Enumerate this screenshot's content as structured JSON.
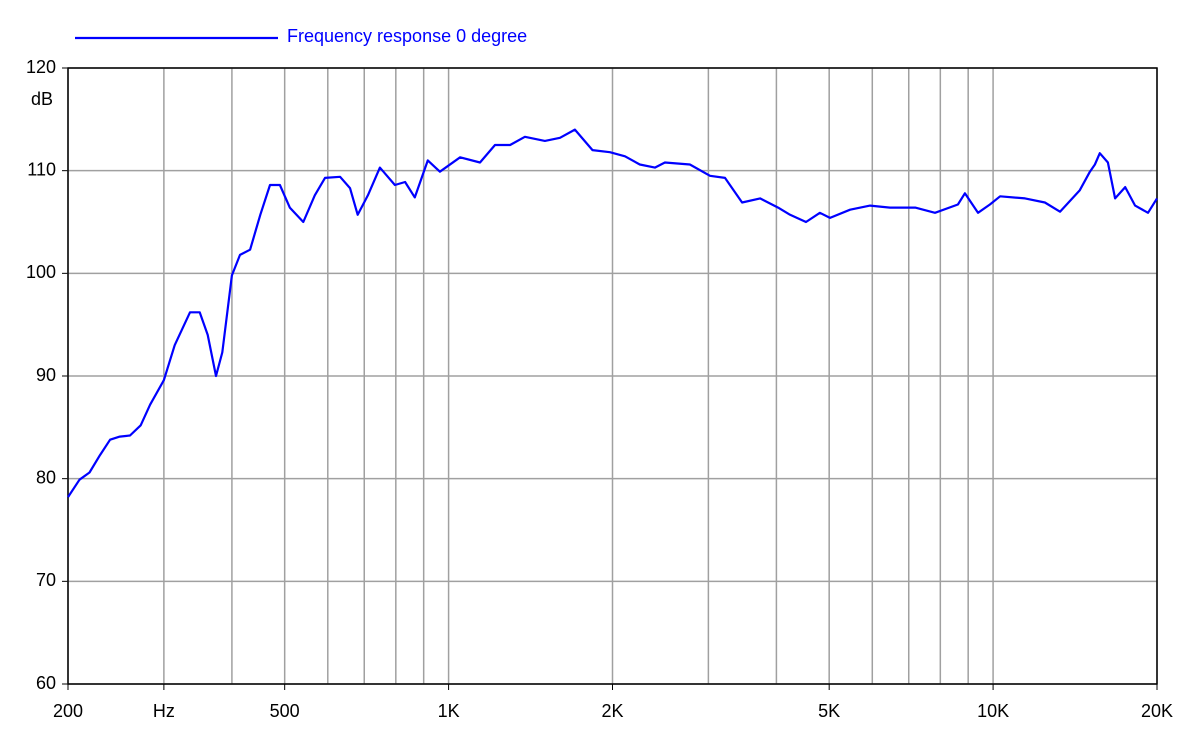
{
  "chart_data": {
    "type": "line",
    "title": "Frequency response 0 degree",
    "y_label": "dB",
    "log_x": true,
    "grid": true,
    "xlim": [
      200,
      20000
    ],
    "ylim": [
      60,
      120
    ],
    "xticks": [
      200,
      {
        "value": 300,
        "label": "Hz"
      },
      500,
      {
        "value": 1000,
        "label": "1K"
      },
      {
        "value": 2000,
        "label": "2K"
      },
      {
        "value": 5000,
        "label": "5K"
      },
      {
        "value": 10000,
        "label": "10K"
      },
      {
        "value": 20000,
        "label": "20K"
      }
    ],
    "xminor": [
      400,
      600,
      700,
      800,
      900,
      3000,
      4000,
      6000,
      7000,
      8000,
      9000
    ],
    "yticks": [
      60,
      70,
      80,
      90,
      100,
      110,
      120
    ],
    "x": [
      200,
      210,
      219,
      229,
      239,
      249,
      260,
      272,
      283,
      300,
      314,
      335,
      349,
      361,
      374,
      384,
      400,
      414,
      432,
      451,
      470,
      490,
      511,
      541,
      568,
      593,
      632,
      659,
      681,
      711,
      748,
      797,
      832,
      867,
      916,
      964,
      1050,
      1142,
      1217,
      1297,
      1381,
      1503,
      1602,
      1706,
      1838,
      1978,
      2109,
      2245,
      2393,
      2496,
      2774,
      3020,
      3219,
      3460,
      3734,
      4028,
      4238,
      4533,
      4808,
      5018,
      5463,
      5945,
      6467,
      7193,
      7822,
      8616,
      8876,
      9382,
      9866,
      10300,
      11450,
      12450,
      13270,
      14430,
      15060,
      15380,
      15700,
      16250,
      16750,
      17480,
      18230,
      19250,
      20000
    ],
    "series": [
      {
        "name": "Frequency response 0 degree",
        "color": "#0000ff",
        "values": [
          78.2,
          79.9,
          80.6,
          82.3,
          83.8,
          84.1,
          84.2,
          85.2,
          87.2,
          89.6,
          93,
          96.2,
          96.2,
          94,
          90,
          92.3,
          99.8,
          101.8,
          102.3,
          105.7,
          108.6,
          108.6,
          106.4,
          105,
          107.6,
          109.3,
          109.4,
          108.3,
          105.7,
          107.6,
          110.3,
          108.6,
          108.9,
          107.4,
          111,
          109.9,
          111.3,
          110.8,
          112.5,
          112.5,
          113.3,
          112.9,
          113.2,
          114,
          112,
          111.8,
          111.4,
          110.6,
          110.3,
          110.8,
          110.6,
          109.5,
          109.3,
          106.9,
          107.3,
          106.4,
          105.7,
          105,
          105.9,
          105.4,
          106.2,
          106.6,
          106.4,
          106.4,
          105.9,
          106.7,
          107.8,
          105.9,
          106.7,
          107.5,
          107.3,
          106.9,
          106,
          108.1,
          109.9,
          110.6,
          111.7,
          110.8,
          107.3,
          108.4,
          106.6,
          105.9,
          107.3
        ]
      }
    ]
  }
}
